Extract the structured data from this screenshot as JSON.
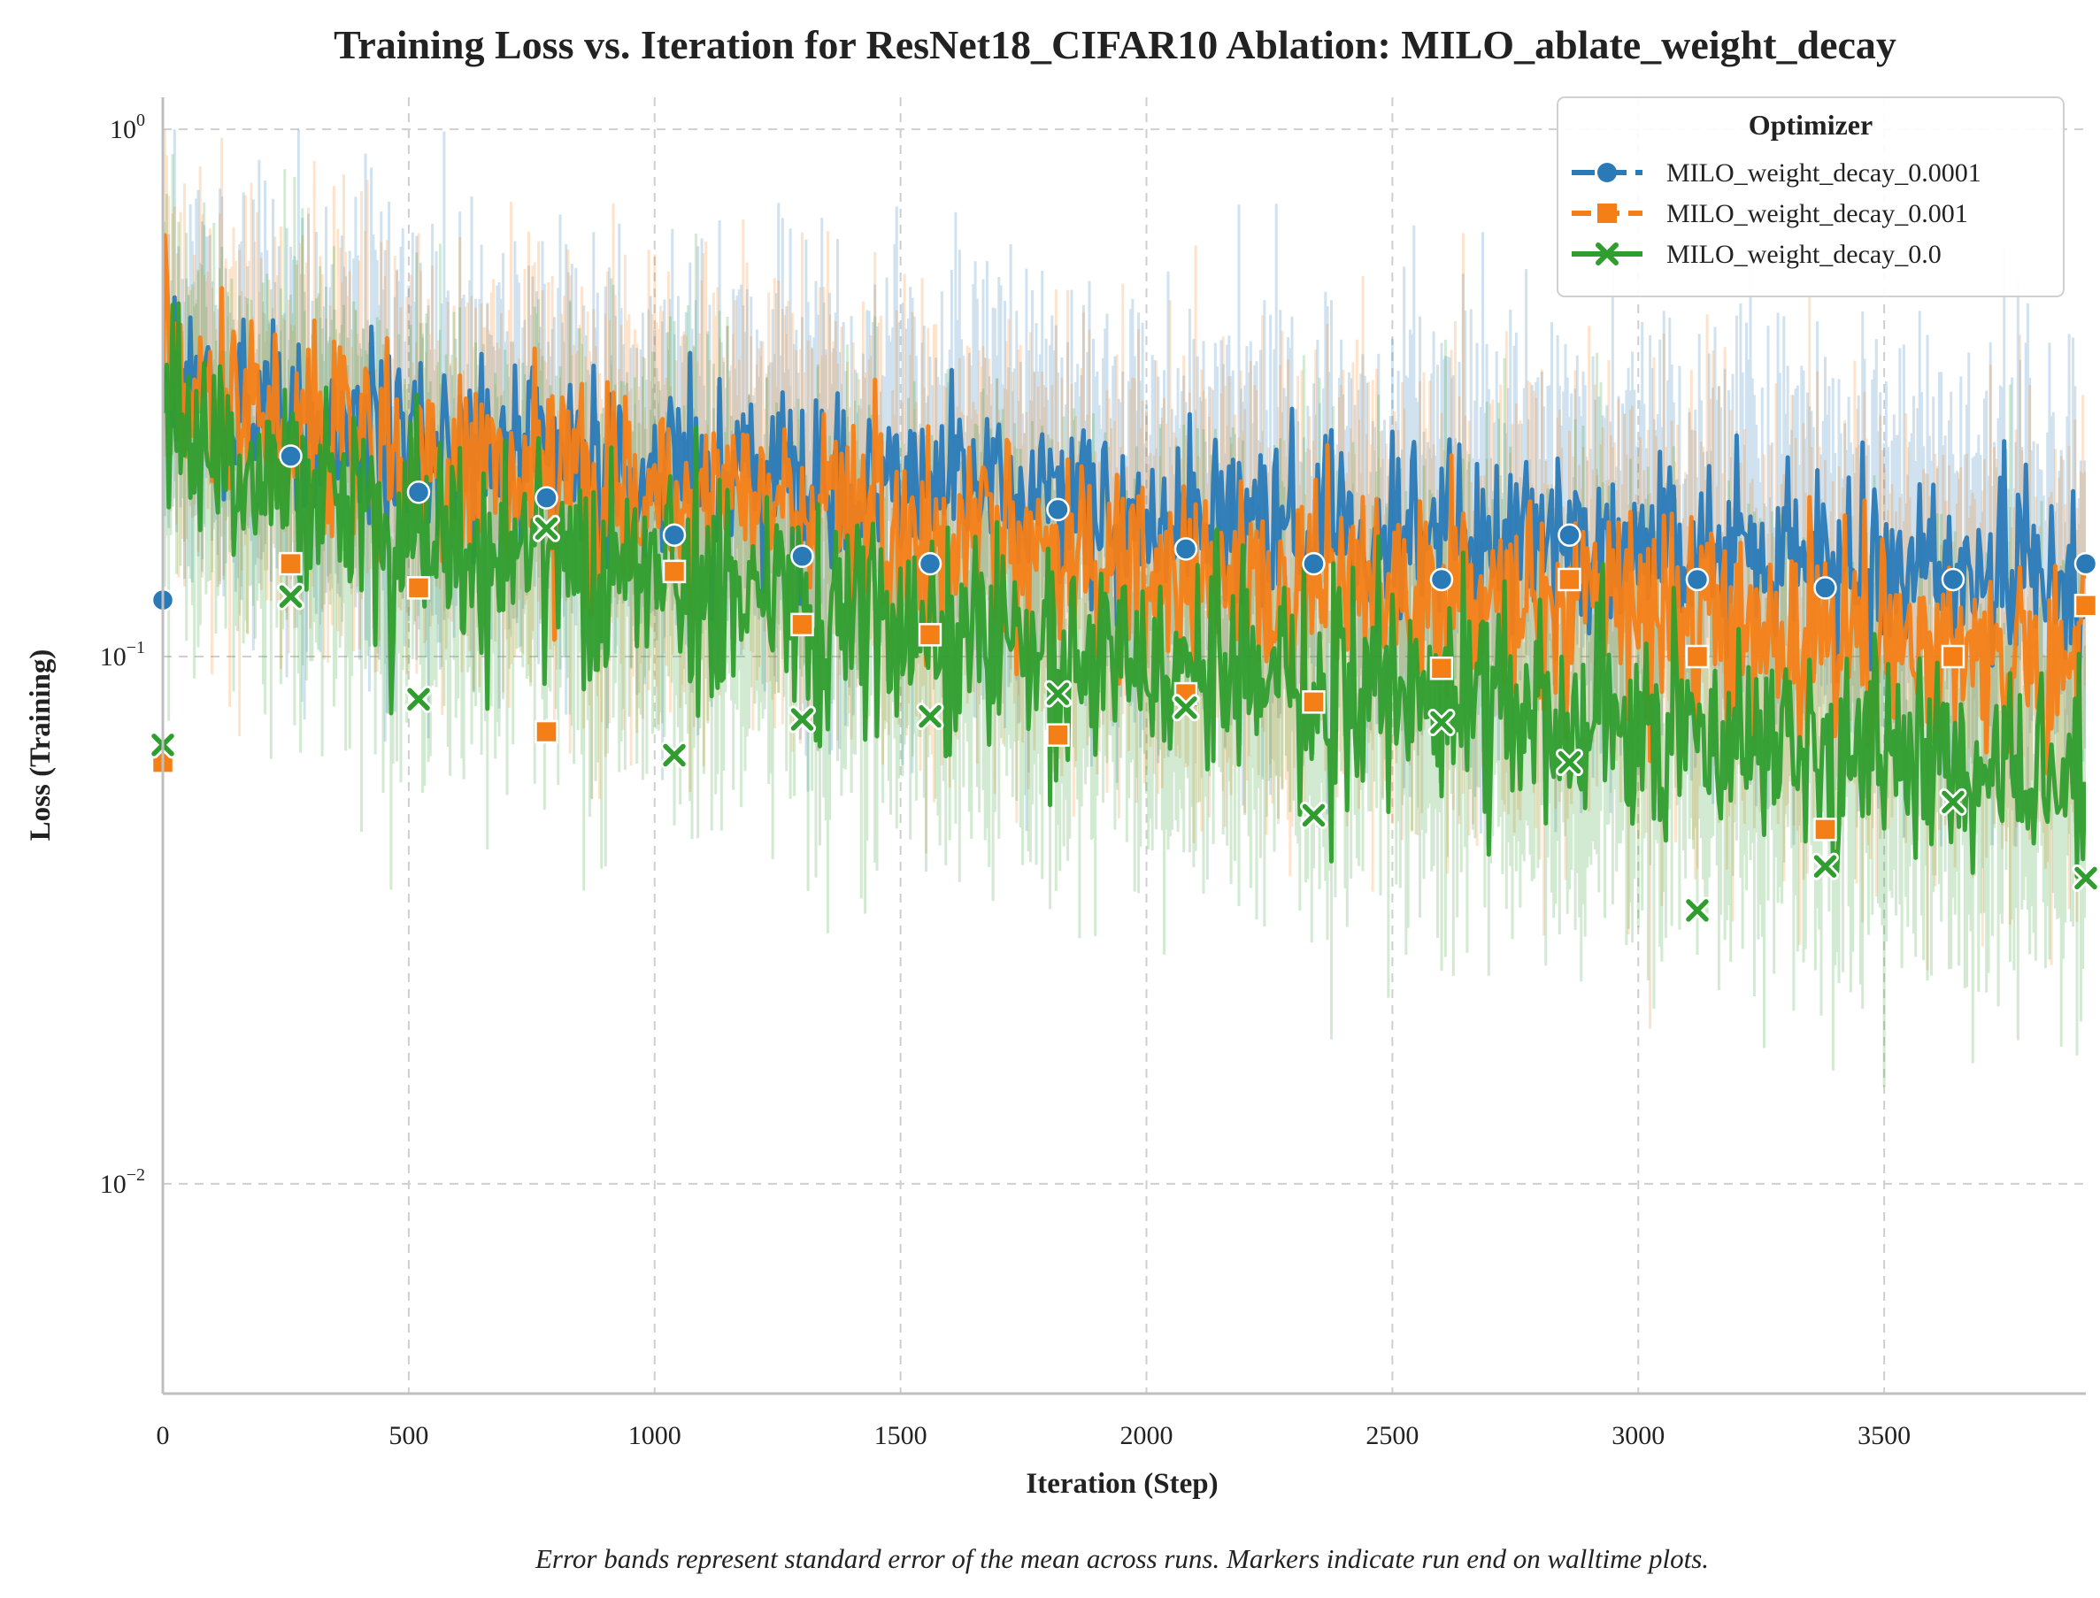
{
  "chart_data": {
    "type": "line",
    "title": "Training Loss vs. Iteration for ResNet18_CIFAR10 Ablation: MILO_ablate_weight_decay",
    "xlabel": "Iteration (Step)",
    "ylabel": "Loss (Training)",
    "caption": "Error bands represent standard error of the mean across runs. Markers indicate run end on walltime plots.",
    "xlim": [
      0,
      3910
    ],
    "ylim": [
      0.004,
      1.15
    ],
    "yscale": "log",
    "grid": true,
    "x_ticks": [
      0,
      500,
      1000,
      1500,
      2000,
      2500,
      3000,
      3500
    ],
    "x_tick_labels": [
      "0",
      "500",
      "1000",
      "1500",
      "2000",
      "2500",
      "3000",
      "3500"
    ],
    "y_ticks": [
      {
        "value": 1,
        "base": "10",
        "exp": "0"
      },
      {
        "value": 0.1,
        "base": "10",
        "exp": "−1"
      },
      {
        "value": 0.01,
        "base": "10",
        "exp": "−2"
      }
    ],
    "legend": {
      "title": "Optimizer",
      "position": "upper right"
    },
    "marker_iterations": [
      0,
      260,
      520,
      780,
      1040,
      1300,
      1560,
      1820,
      2080,
      2340,
      2600,
      2860,
      3120,
      3380,
      3640,
      3910
    ],
    "series": [
      {
        "name": "MILO_weight_decay_0.0001",
        "color": "#2a7ab8",
        "marker": "circle",
        "start": 0.35,
        "end": 0.14,
        "noise": 0.38,
        "markers": [
          0.128,
          0.24,
          0.205,
          0.2,
          0.17,
          0.155,
          0.15,
          0.19,
          0.16,
          0.15,
          0.14,
          0.17,
          0.14,
          0.135,
          0.14,
          0.15
        ]
      },
      {
        "name": "MILO_weight_decay_0.001",
        "color": "#f57f17",
        "marker": "square",
        "start": 0.38,
        "end": 0.1,
        "noise": 0.45,
        "markers": [
          0.063,
          0.15,
          0.135,
          0.072,
          0.145,
          0.115,
          0.11,
          0.071,
          0.085,
          0.082,
          0.095,
          0.14,
          0.1,
          0.047,
          0.1,
          0.125
        ]
      },
      {
        "name": "MILO_weight_decay_0.0",
        "color": "#2f9e2f",
        "marker": "x",
        "start": 0.3,
        "end": 0.06,
        "noise": 0.5,
        "markers": [
          0.068,
          0.13,
          0.083,
          0.175,
          0.065,
          0.076,
          0.077,
          0.085,
          0.08,
          0.05,
          0.075,
          0.063,
          0.033,
          0.04,
          0.053,
          0.038
        ]
      }
    ]
  }
}
